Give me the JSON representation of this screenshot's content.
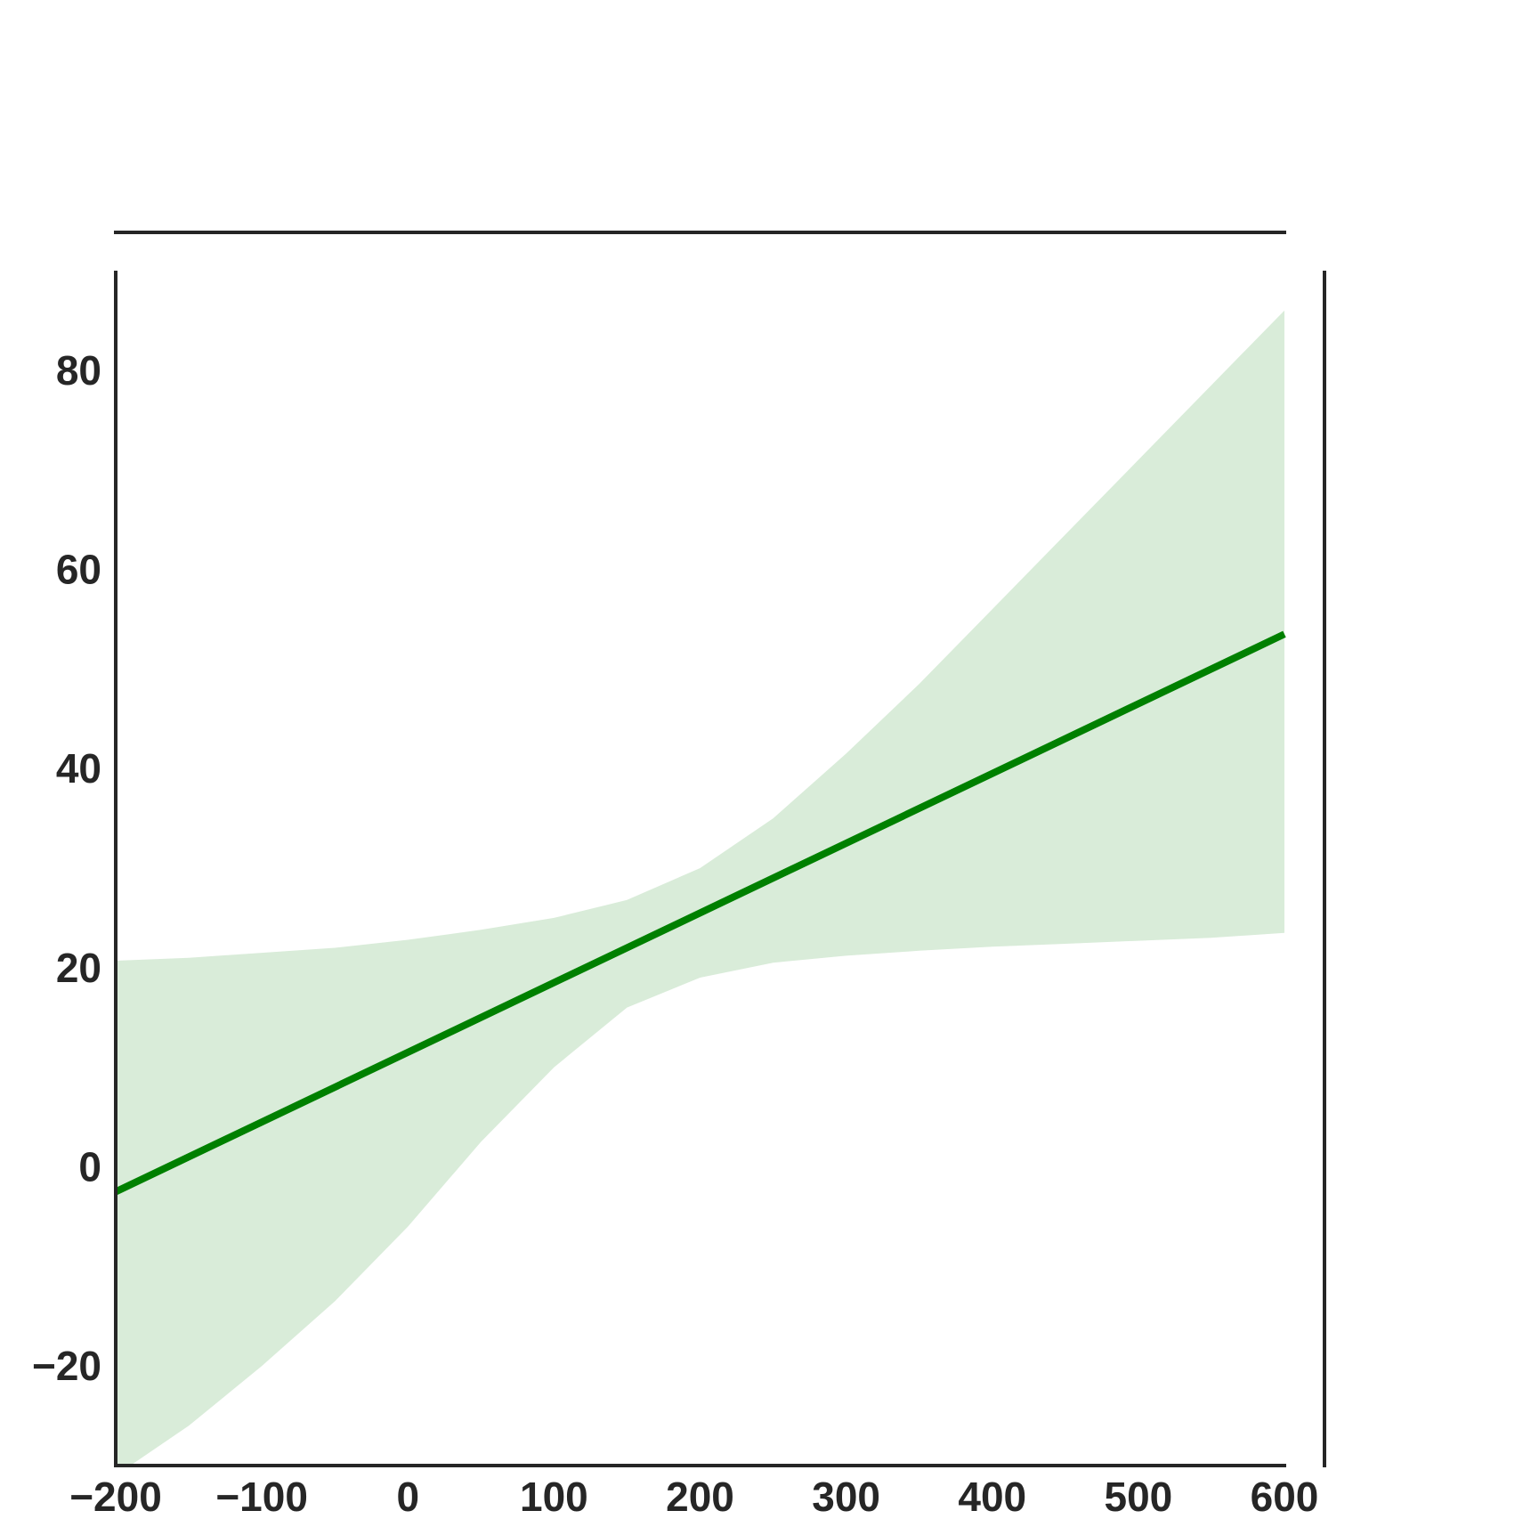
{
  "chart_data": {
    "type": "line",
    "title": "",
    "xlabel": "",
    "ylabel": "",
    "xlim": [
      -200,
      600
    ],
    "ylim": [
      -30,
      90
    ],
    "grid": false,
    "x_ticks": [
      -200,
      -100,
      0,
      100,
      200,
      300,
      400,
      500,
      600
    ],
    "x_tick_labels": [
      "−200",
      "−100",
      "0",
      "100",
      "200",
      "300",
      "400",
      "500",
      "600"
    ],
    "y_ticks": [
      -20,
      0,
      20,
      40,
      60,
      80
    ],
    "y_tick_labels": [
      "−20",
      "0",
      "20",
      "40",
      "60",
      "80"
    ],
    "series": [
      {
        "kind": "regression-line",
        "color": "#008000",
        "x": [
          -200,
          600
        ],
        "y": [
          -2.5,
          53.5
        ]
      }
    ],
    "confidence_band": {
      "color": "#d9ecd9",
      "x": [
        -200,
        -150,
        -100,
        -50,
        0,
        50,
        100,
        150,
        200,
        250,
        300,
        350,
        400,
        450,
        500,
        550,
        600
      ],
      "upper": [
        20.7,
        21.0,
        21.5,
        22.0,
        22.8,
        23.8,
        25.0,
        26.8,
        30.0,
        35.0,
        41.5,
        48.5,
        56.0,
        63.5,
        71.0,
        78.5,
        86.0
      ],
      "lower": [
        -31.0,
        -26.0,
        -20.0,
        -13.5,
        -6.0,
        2.5,
        10.0,
        16.0,
        19.0,
        20.5,
        21.2,
        21.7,
        22.1,
        22.4,
        22.7,
        23.0,
        23.5
      ]
    },
    "colors": {
      "axis": "#262626",
      "text": "#262626"
    }
  }
}
